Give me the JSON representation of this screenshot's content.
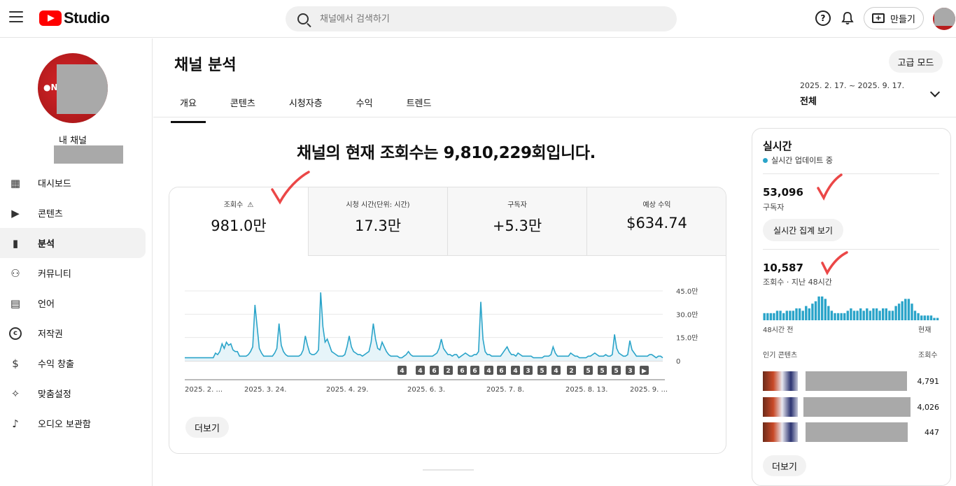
{
  "header": {
    "logo_text": "Studio",
    "search_placeholder": "채널에서 검색하기",
    "help_glyph": "?",
    "create_label": "만들기"
  },
  "sidebar": {
    "channel_label": "내 채널",
    "avatar_mark": "●N",
    "items": [
      {
        "label": "대시보드",
        "icon": "dashboard-icon"
      },
      {
        "label": "콘텐츠",
        "icon": "content-icon"
      },
      {
        "label": "분석",
        "icon": "analytics-icon",
        "active": true
      },
      {
        "label": "커뮤니티",
        "icon": "community-icon"
      },
      {
        "label": "언어",
        "icon": "subtitles-icon"
      },
      {
        "label": "저작권",
        "icon": "copyright-icon"
      },
      {
        "label": "수익 창출",
        "icon": "dollar-icon"
      },
      {
        "label": "맞춤설정",
        "icon": "magic-wand-icon"
      },
      {
        "label": "오디오 보관함",
        "icon": "audio-library-icon"
      }
    ]
  },
  "main": {
    "title": "채널 분석",
    "advanced_label": "고급 모드",
    "tabs": [
      "개요",
      "콘텐츠",
      "시청자층",
      "수익",
      "트렌드"
    ],
    "date_range": "2025. 2. 17. ~ 2025. 9. 17.",
    "date_selection": "전체",
    "headline": "채널의 현재 조회수는 9,810,229회입니다.",
    "more_label": "더보기",
    "metrics": [
      {
        "label": "조회수",
        "value": "981.0만",
        "warning": true
      },
      {
        "label": "시청 시간(단위: 시간)",
        "value": "17.3만"
      },
      {
        "label": "구독자",
        "value": "+5.3만"
      },
      {
        "label": "예상 수익",
        "value": "$634.74"
      }
    ]
  },
  "chart_data": {
    "type": "area",
    "series": [
      {
        "values": [
          2,
          2,
          2,
          2,
          2,
          2,
          2,
          2,
          2,
          2,
          2,
          2,
          2,
          2,
          5,
          4,
          6,
          11,
          8,
          12,
          10,
          11,
          7,
          6,
          6,
          3,
          3,
          3,
          3,
          4,
          6,
          9,
          36,
          22,
          8,
          5,
          3,
          3,
          3,
          3,
          3,
          5,
          8,
          24,
          10,
          6,
          4,
          3,
          3,
          3,
          3,
          3,
          3,
          4,
          7,
          16,
          10,
          5,
          4,
          4,
          5,
          7,
          44,
          22,
          12,
          14,
          10,
          6,
          5,
          4,
          3,
          3,
          3,
          4,
          9,
          16,
          9,
          6,
          5,
          4,
          4,
          3,
          4,
          5,
          6,
          12,
          24,
          14,
          8,
          7,
          12,
          9,
          6,
          4,
          3,
          3,
          3,
          3,
          2,
          2,
          3,
          4,
          6,
          4,
          3,
          3,
          3,
          3,
          3,
          3,
          3,
          3,
          3,
          3,
          4,
          5,
          8,
          14,
          8,
          6,
          4,
          4,
          3,
          4,
          4,
          2,
          3,
          4,
          5,
          4,
          3,
          3,
          4,
          4,
          6,
          38,
          14,
          6,
          4,
          4,
          3,
          3,
          3,
          3,
          3,
          5,
          7,
          9,
          6,
          4,
          4,
          3,
          5,
          4,
          3,
          3,
          3,
          3,
          3,
          2,
          2,
          2,
          2,
          2,
          3,
          3,
          3,
          4,
          9,
          5,
          3,
          3,
          3,
          3,
          3,
          3,
          5,
          4,
          3,
          3,
          2,
          2,
          2,
          2,
          3,
          3,
          4,
          5,
          4,
          3,
          3,
          3,
          4,
          3,
          3,
          4,
          17,
          8,
          5,
          4,
          3,
          3,
          4,
          13,
          7,
          5,
          3,
          3,
          3,
          3,
          3,
          3,
          4,
          4,
          3,
          2,
          3,
          3,
          2
        ]
      }
    ],
    "y_ticks": [
      "45.0만",
      "30.0만",
      "15.0만",
      "0"
    ],
    "ylim": [
      0,
      45
    ],
    "x_ticks": [
      "2025. 2. ...",
      "2025. 3. 24.",
      "2025. 4. 29.",
      "2025. 6. 3.",
      "2025. 7. 8.",
      "2025. 8. 13.",
      "2025. 9. ..."
    ],
    "badges": [
      "4",
      "4",
      "6",
      "2",
      "6",
      "6",
      "4",
      "6",
      "4",
      "3",
      "5",
      "4",
      "2",
      "5",
      "5",
      "5",
      "3",
      "▶"
    ],
    "line_color": "#2aa4c9",
    "fill_color": "#e6f4f9"
  },
  "realtime": {
    "title": "실시간",
    "live_label": "실시간 업데이트 중",
    "subscribers_value": "53,096",
    "subscribers_label": "구독자",
    "realtime_button": "실시간 집계 보기",
    "views_value": "10,587",
    "views_label": "조회수 · 지난 48시간",
    "axis_left": "48시간 전",
    "axis_right": "현재",
    "popular_label": "인기 콘텐츠",
    "views_col_label": "조회수",
    "bars": [
      3,
      3,
      3,
      3,
      4,
      4,
      3,
      4,
      4,
      4,
      5,
      5,
      4,
      6,
      5,
      7,
      8,
      10,
      10,
      9,
      6,
      4,
      3,
      3,
      3,
      3,
      4,
      5,
      4,
      4,
      5,
      4,
      5,
      4,
      5,
      5,
      4,
      5,
      5,
      4,
      4,
      6,
      7,
      8,
      9,
      9,
      7,
      4,
      3,
      2,
      2,
      2,
      2,
      1,
      1
    ],
    "bar_color": "#2aa4c9",
    "items": [
      {
        "views": "4,791"
      },
      {
        "views": "4,026"
      },
      {
        "views": "447"
      }
    ],
    "more_label": "더보기"
  }
}
